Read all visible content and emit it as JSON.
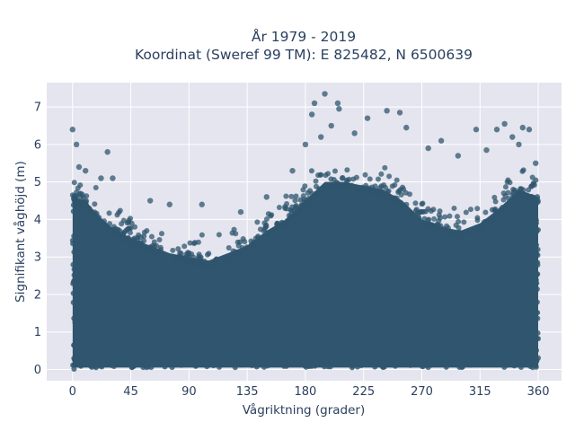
{
  "chart_data": {
    "type": "scatter",
    "title": "År 1979 - 2019",
    "subtitle": "Koordinat (Sweref 99 TM): E 825482, N 6500639",
    "xlabel": "Vågriktning (grader)",
    "ylabel": "Signifikant våghöjd (m)",
    "xlim": [
      -20,
      378
    ],
    "ylim": [
      -0.3,
      7.65
    ],
    "x_ticks": [
      0,
      45,
      90,
      135,
      180,
      225,
      270,
      315,
      360
    ],
    "y_ticks": [
      0,
      1,
      2,
      3,
      4,
      5,
      6,
      7
    ],
    "grid": true,
    "legend": "none",
    "marker_color": "#2f566e",
    "background_color": "#e5e5ef",
    "envelope": {
      "description_of_dense_band_upper_edge_by_direction": "dense cloud from 0 up to this height",
      "x": [
        0,
        10,
        20,
        30,
        45,
        60,
        75,
        90,
        105,
        120,
        135,
        150,
        165,
        180,
        195,
        210,
        225,
        240,
        255,
        270,
        285,
        300,
        315,
        330,
        345,
        360
      ],
      "y": [
        4.6,
        4.5,
        4.1,
        3.8,
        3.5,
        3.3,
        3.1,
        3.0,
        2.9,
        3.1,
        3.3,
        3.7,
        4.0,
        4.5,
        5.0,
        5.0,
        4.9,
        4.8,
        4.5,
        4.0,
        3.8,
        3.7,
        3.9,
        4.3,
        4.8,
        4.6
      ]
    },
    "outliers": [
      {
        "x": 0,
        "y": 6.4
      },
      {
        "x": 3,
        "y": 6.0
      },
      {
        "x": 27,
        "y": 5.8
      },
      {
        "x": 5,
        "y": 5.4
      },
      {
        "x": 10,
        "y": 5.3
      },
      {
        "x": 22,
        "y": 5.1
      },
      {
        "x": 31,
        "y": 5.1
      },
      {
        "x": 60,
        "y": 4.5
      },
      {
        "x": 75,
        "y": 4.4
      },
      {
        "x": 100,
        "y": 4.4
      },
      {
        "x": 130,
        "y": 4.2
      },
      {
        "x": 150,
        "y": 4.6
      },
      {
        "x": 170,
        "y": 5.3
      },
      {
        "x": 180,
        "y": 6.0
      },
      {
        "x": 185,
        "y": 6.8
      },
      {
        "x": 187,
        "y": 7.1
      },
      {
        "x": 195,
        "y": 7.35
      },
      {
        "x": 192,
        "y": 6.2
      },
      {
        "x": 200,
        "y": 6.5
      },
      {
        "x": 205,
        "y": 7.1
      },
      {
        "x": 206,
        "y": 6.95
      },
      {
        "x": 218,
        "y": 6.3
      },
      {
        "x": 228,
        "y": 6.7
      },
      {
        "x": 243,
        "y": 6.9
      },
      {
        "x": 253,
        "y": 6.85
      },
      {
        "x": 258,
        "y": 6.45
      },
      {
        "x": 275,
        "y": 5.9
      },
      {
        "x": 285,
        "y": 6.1
      },
      {
        "x": 298,
        "y": 5.7
      },
      {
        "x": 312,
        "y": 6.4
      },
      {
        "x": 320,
        "y": 5.85
      },
      {
        "x": 328,
        "y": 6.4
      },
      {
        "x": 334,
        "y": 6.55
      },
      {
        "x": 340,
        "y": 6.2
      },
      {
        "x": 348,
        "y": 6.45
      },
      {
        "x": 353,
        "y": 6.4
      },
      {
        "x": 345,
        "y": 6.0
      },
      {
        "x": 358,
        "y": 5.5
      }
    ]
  }
}
